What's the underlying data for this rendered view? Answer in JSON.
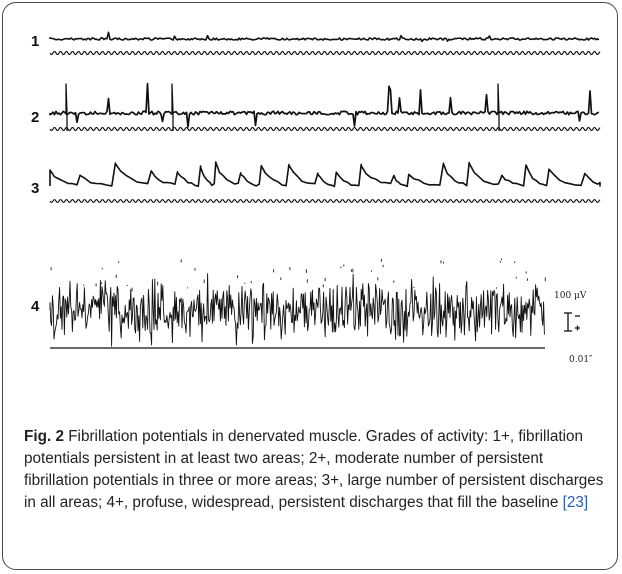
{
  "figure": {
    "traces": [
      {
        "label": "1",
        "grade": "1+"
      },
      {
        "label": "2",
        "grade": "2+"
      },
      {
        "label": "3",
        "grade": "3+"
      },
      {
        "label": "4",
        "grade": "4+"
      }
    ],
    "scale_bar_voltage": "100 μV",
    "scale_bar_time": "0.01″"
  },
  "caption": {
    "fig_label": "Fig. 2",
    "text": " Fibrillation potentials in denervated muscle. Grades of activity: 1+, fibrillation potentials persistent in at least two areas; 2+, moderate number of persistent fibrillation potentials in three or more areas; 3+, large number of persistent discharges in all areas; 4+, profuse, widespread, persistent discharges that fill the baseline ",
    "ref": "[23]"
  }
}
